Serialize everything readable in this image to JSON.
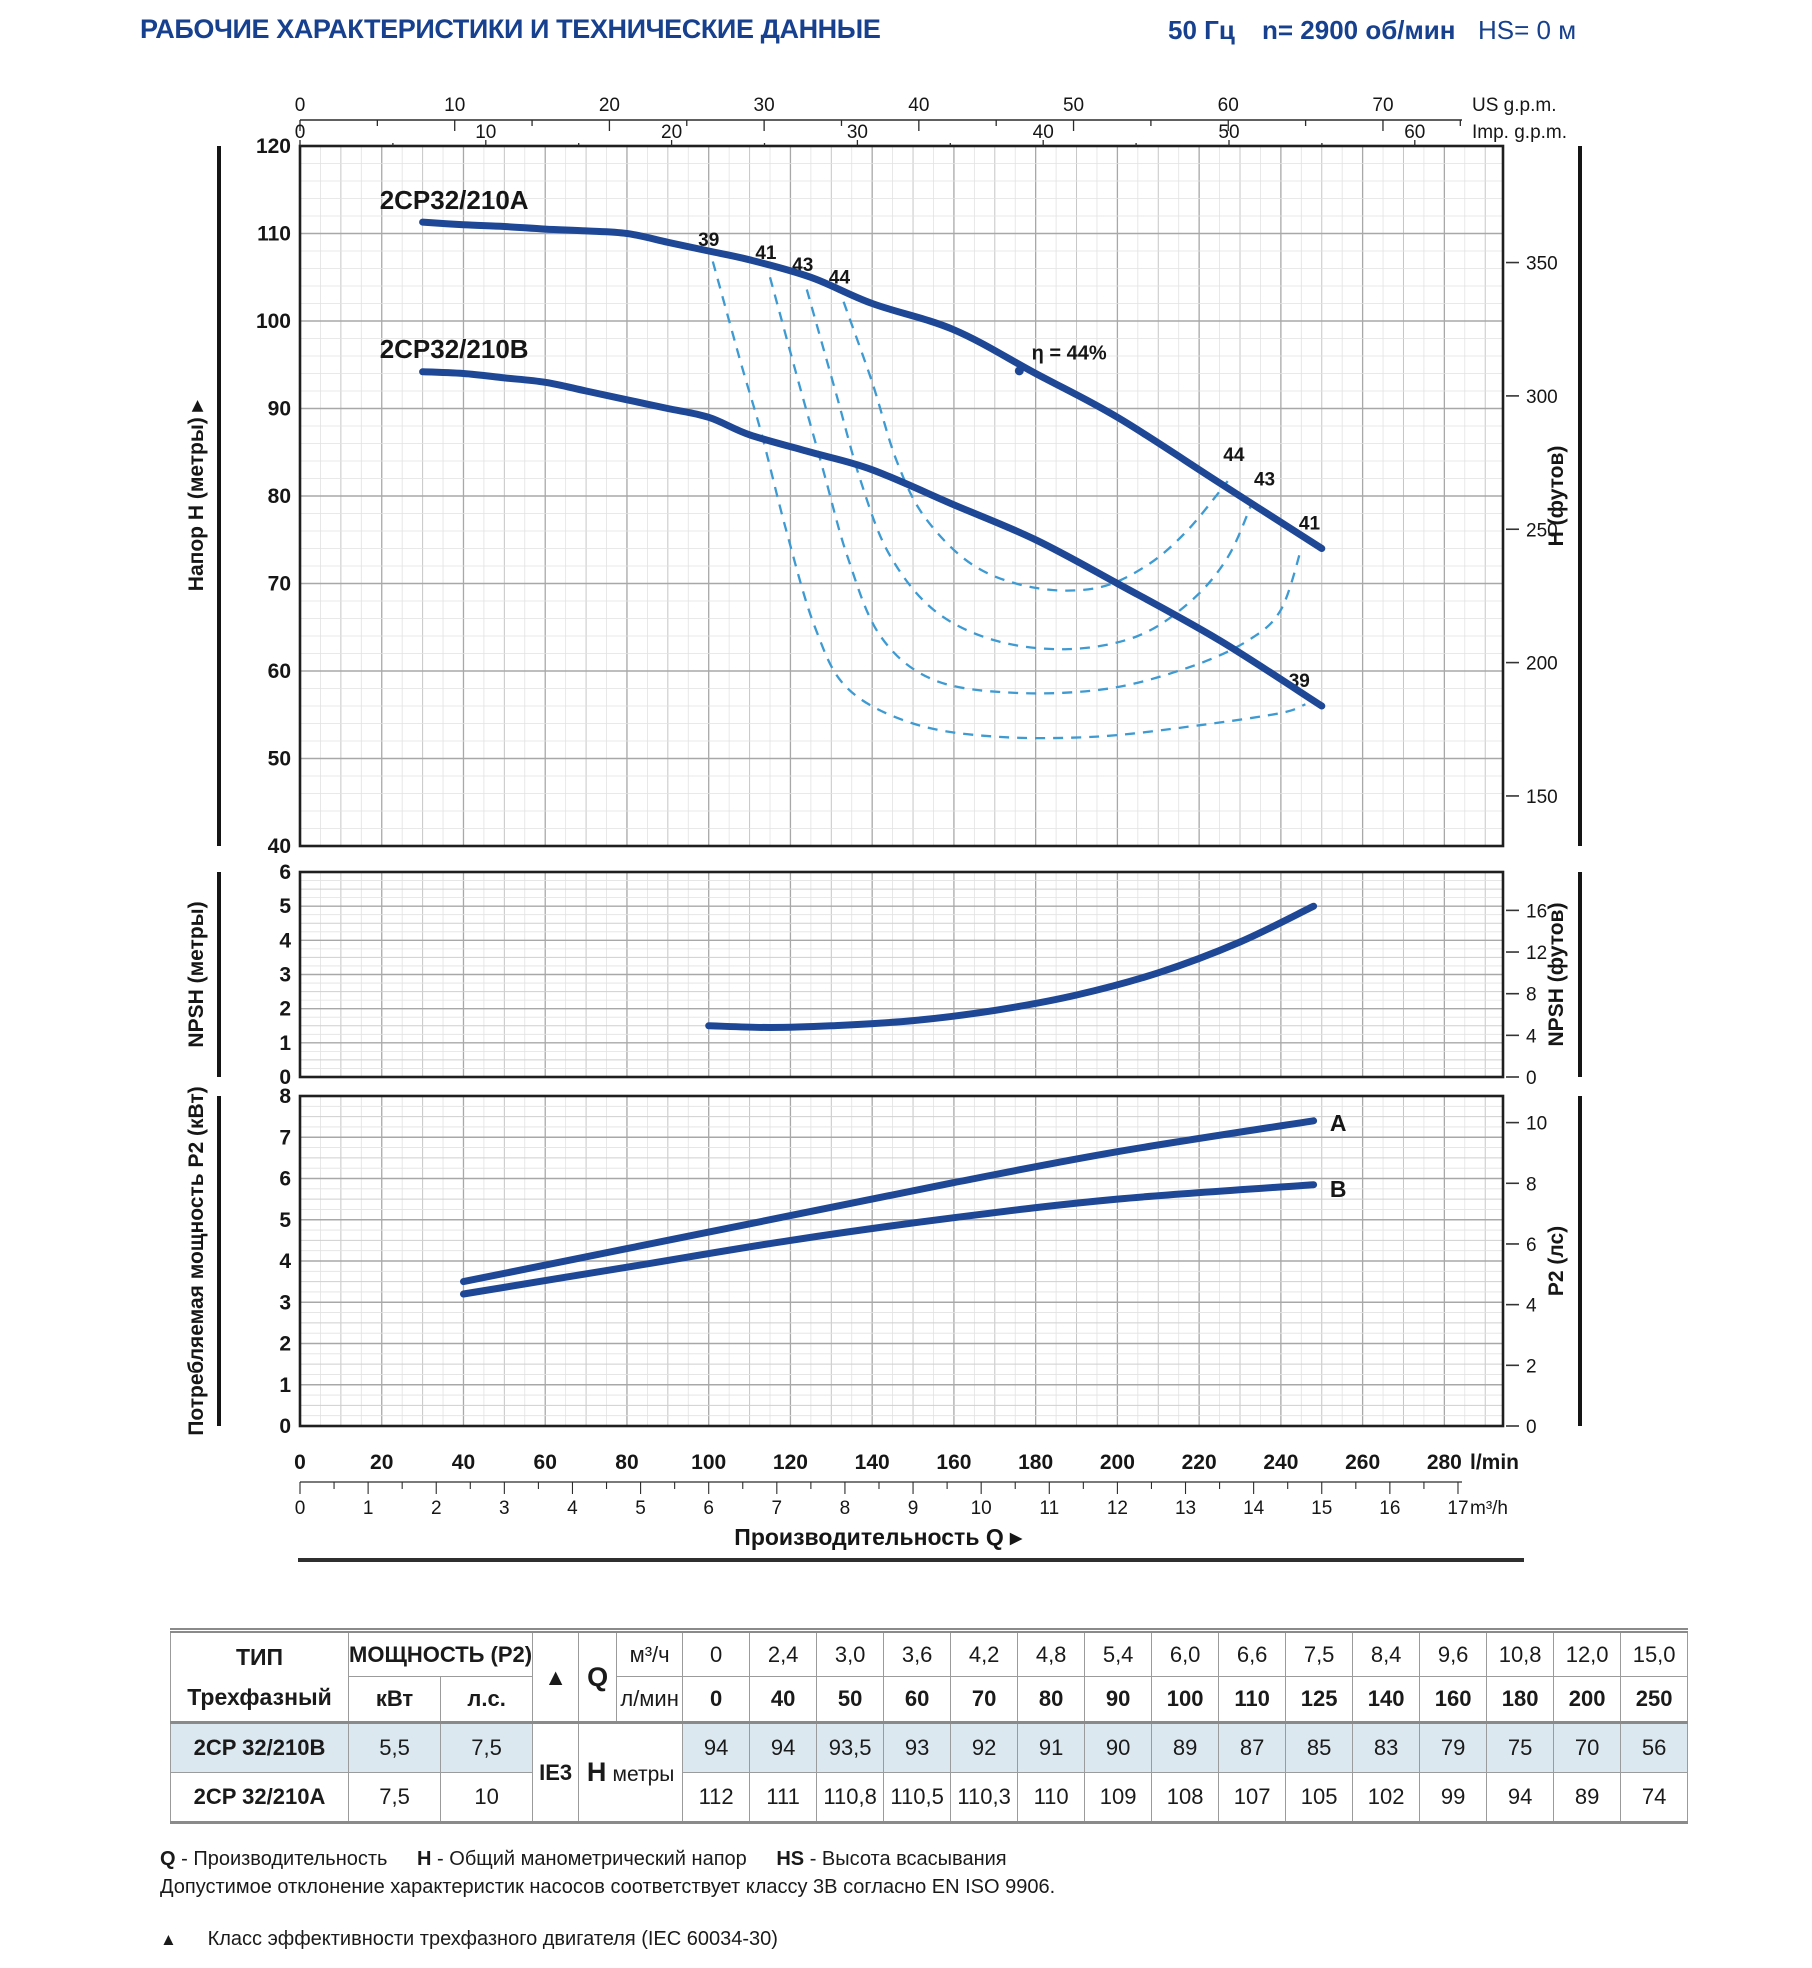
{
  "header": {
    "title": "РАБОЧИЕ ХАРАКТЕРИСТИКИ И ТЕХНИЧЕСКИЕ ДАННЫЕ",
    "frequency": "50 Гц",
    "speed": "n= 2900 об/мин",
    "suction_head": "HS= 0 м"
  },
  "colors": {
    "brand_blue": "#17418e",
    "curve_blue": "#1e4796",
    "efficiency_dash_blue": "#3d9ad2",
    "row_highlight": "#dce8f0"
  },
  "x_axis": {
    "lmin": {
      "ticks": [
        0,
        20,
        40,
        60,
        80,
        100,
        120,
        140,
        160,
        180,
        200,
        220,
        240,
        260,
        280
      ],
      "unit": "l/min"
    },
    "m3h": {
      "ticks": [
        0,
        1,
        2,
        3,
        4,
        5,
        6,
        7,
        8,
        9,
        10,
        11,
        12,
        13,
        14,
        15,
        16,
        17
      ],
      "unit": "m³/h"
    },
    "us_gpm": {
      "ticks": [
        0,
        10,
        20,
        30,
        40,
        50,
        60,
        70
      ],
      "unit": "US g.p.m."
    },
    "imp_gpm": {
      "ticks": [
        0,
        10,
        20,
        30,
        40,
        50,
        60
      ],
      "unit": "Imp. g.p.m."
    },
    "title": "Производительность Q",
    "title_arrow": "▸"
  },
  "chart_data": [
    {
      "id": "head",
      "type": "line",
      "ylabel_left": "Напор H (метры)",
      "ylabel_left_arrow": "▸",
      "ylabel_right": "H (футов)",
      "ylim": [
        40,
        120
      ],
      "ytick_step": 10,
      "right_ticks": {
        "unit": "ft",
        "values": [
          150,
          200,
          250,
          300,
          350
        ]
      },
      "series": [
        {
          "name": "2CP32/210A",
          "x": [
            30,
            40,
            50,
            60,
            70,
            80,
            90,
            100,
            110,
            125,
            140,
            160,
            180,
            200,
            225,
            250
          ],
          "y": [
            111.3,
            111,
            110.8,
            110.5,
            110.3,
            110,
            109,
            108,
            107,
            105,
            102,
            99,
            94,
            89,
            81.5,
            74
          ],
          "label": {
            "text": "2CP32/210A",
            "q": 19.5,
            "h": 112.8
          }
        },
        {
          "name": "2CP32/210B",
          "x": [
            30,
            40,
            50,
            60,
            70,
            80,
            90,
            100,
            110,
            125,
            140,
            160,
            180,
            200,
            225,
            250
          ],
          "y": [
            94.2,
            94,
            93.5,
            93,
            92,
            91,
            90,
            89,
            87,
            85,
            83,
            79,
            75,
            70,
            63.5,
            56
          ],
          "label": {
            "text": "2CP32/210B",
            "q": 19.5,
            "h": 95.8
          }
        }
      ],
      "efficiency_curves": [
        {
          "value": "39",
          "points": [
            [
              101,
              106.8
            ],
            [
              108,
              95
            ],
            [
              113,
              87
            ],
            [
              119,
              76
            ],
            [
              126,
              65
            ],
            [
              134,
              58
            ],
            [
              150,
              54
            ],
            [
              170,
              52.5
            ],
            [
              195,
              52.5
            ],
            [
              220,
              53.8
            ],
            [
              240,
              55.2
            ],
            [
              246,
              56.2
            ]
          ],
          "label_start": [
            100,
            108.6
          ],
          "label_end": [
            244.5,
            58.2
          ]
        },
        {
          "value": "41",
          "points": [
            [
              115,
              105
            ],
            [
              122,
              93
            ],
            [
              128,
              83
            ],
            [
              134,
              73
            ],
            [
              142,
              64
            ],
            [
              155,
              59
            ],
            [
              175,
              57.5
            ],
            [
              198,
              58
            ],
            [
              218,
              60.5
            ],
            [
              232,
              63.5
            ],
            [
              240,
              67
            ],
            [
              245,
              74
            ]
          ],
          "label_start": [
            114,
            107.1
          ],
          "label_end": [
            247,
            76.2
          ]
        },
        {
          "value": "43",
          "points": [
            [
              124,
              103.6
            ],
            [
              131,
              92
            ],
            [
              137,
              82
            ],
            [
              144,
              73.5
            ],
            [
              155,
              67
            ],
            [
              170,
              63.5
            ],
            [
              188,
              62.5
            ],
            [
              205,
              64
            ],
            [
              218,
              68
            ],
            [
              227,
              73
            ],
            [
              233,
              79.3
            ]
          ],
          "label_start": [
            123,
            105.7
          ],
          "label_end": [
            236,
            81.2
          ]
        },
        {
          "value": "44",
          "points": [
            [
              133,
              102.2
            ],
            [
              140,
              93
            ],
            [
              146,
              84
            ],
            [
              153,
              77.5
            ],
            [
              165,
              72
            ],
            [
              180,
              69.5
            ],
            [
              195,
              69.5
            ],
            [
              207,
              72
            ],
            [
              217,
              76
            ],
            [
              227,
              81.7
            ]
          ],
          "label_start": [
            132,
            104.3
          ],
          "label_end": [
            228.5,
            84
          ]
        }
      ],
      "eta_label": {
        "text": "η = 44%",
        "q": 179,
        "h": 95.6,
        "dot_q": 176,
        "dot_h": 94.3
      }
    },
    {
      "id": "npsh",
      "type": "line",
      "ylabel_left": "NPSH (метры)",
      "ylabel_right": "NPSH (футов)",
      "ylim": [
        0,
        6
      ],
      "ytick_step": 1,
      "right_ticks": {
        "unit": "ft",
        "values": [
          0,
          4,
          8,
          12,
          16
        ]
      },
      "series": [
        {
          "name": "NPSH",
          "x": [
            100,
            115,
            130,
            150,
            170,
            190,
            210,
            230,
            248
          ],
          "y": [
            1.5,
            1.45,
            1.5,
            1.65,
            1.95,
            2.4,
            3.05,
            3.95,
            5.0
          ]
        }
      ]
    },
    {
      "id": "p2",
      "type": "line",
      "ylabel_left": "Потребляемая мощность P2 (кВт)",
      "ylabel_right": "P2 (лс)",
      "ylim": [
        0,
        8
      ],
      "ytick_step": 1,
      "right_ticks": {
        "unit": "hp",
        "values": [
          0,
          2,
          4,
          6,
          8,
          10
        ]
      },
      "series": [
        {
          "name": "A",
          "x": [
            40,
            80,
            120,
            160,
            200,
            248
          ],
          "y": [
            3.5,
            4.3,
            5.1,
            5.9,
            6.65,
            7.4
          ],
          "label": {
            "text": "A",
            "q": 252,
            "h": 7.35
          }
        },
        {
          "name": "B",
          "x": [
            40,
            80,
            120,
            160,
            200,
            248
          ],
          "y": [
            3.2,
            3.85,
            4.5,
            5.05,
            5.5,
            5.85
          ],
          "label": {
            "text": "B",
            "q": 252,
            "h": 5.75
          }
        }
      ]
    }
  ],
  "table": {
    "col1_h1": "ТИП",
    "col1_h2": "Трехфазный",
    "power_header": "МОЩНОСТЬ (P2)",
    "kw": "кВт",
    "hp": "л.с.",
    "eff_symbol": "▲",
    "q": "Q",
    "m3h": "м³/ч",
    "lmin": "л/мин",
    "ie": "IE3",
    "h_label": "H",
    "h_unit": "метры",
    "m3h_values": [
      "0",
      "2,4",
      "3,0",
      "3,6",
      "4,2",
      "4,8",
      "5,4",
      "6,0",
      "6,6",
      "7,5",
      "8,4",
      "9,6",
      "10,8",
      "12,0",
      "15,0"
    ],
    "lmin_values": [
      "0",
      "40",
      "50",
      "60",
      "70",
      "80",
      "90",
      "100",
      "110",
      "125",
      "140",
      "160",
      "180",
      "200",
      "250"
    ],
    "rows": [
      {
        "type": "2CP 32/210B",
        "kw": "5,5",
        "hp": "7,5",
        "highlight": true,
        "h": [
          "94",
          "94",
          "93,5",
          "93",
          "92",
          "91",
          "90",
          "89",
          "87",
          "85",
          "83",
          "79",
          "75",
          "70",
          "56"
        ]
      },
      {
        "type": "2CP 32/210A",
        "kw": "7,5",
        "hp": "10",
        "highlight": false,
        "h": [
          "112",
          "111",
          "110,8",
          "110,5",
          "110,3",
          "110",
          "109",
          "108",
          "107",
          "105",
          "102",
          "99",
          "94",
          "89",
          "74"
        ]
      }
    ]
  },
  "footnotes": {
    "legend": [
      {
        "term": "Q",
        "desc": "- Производительность"
      },
      {
        "term": "H",
        "desc": "- Общий манометрический напор"
      },
      {
        "term": "HS",
        "desc": "- Высота всасывания"
      }
    ],
    "tolerance": "Допустимое отклонение характеристик насосов соответствует классу 3B согласно EN ISO 9906.",
    "triangle": "▲",
    "efficiency_note": "Класс эффективности трехфазного двигателя (IEC 60034-30)"
  }
}
